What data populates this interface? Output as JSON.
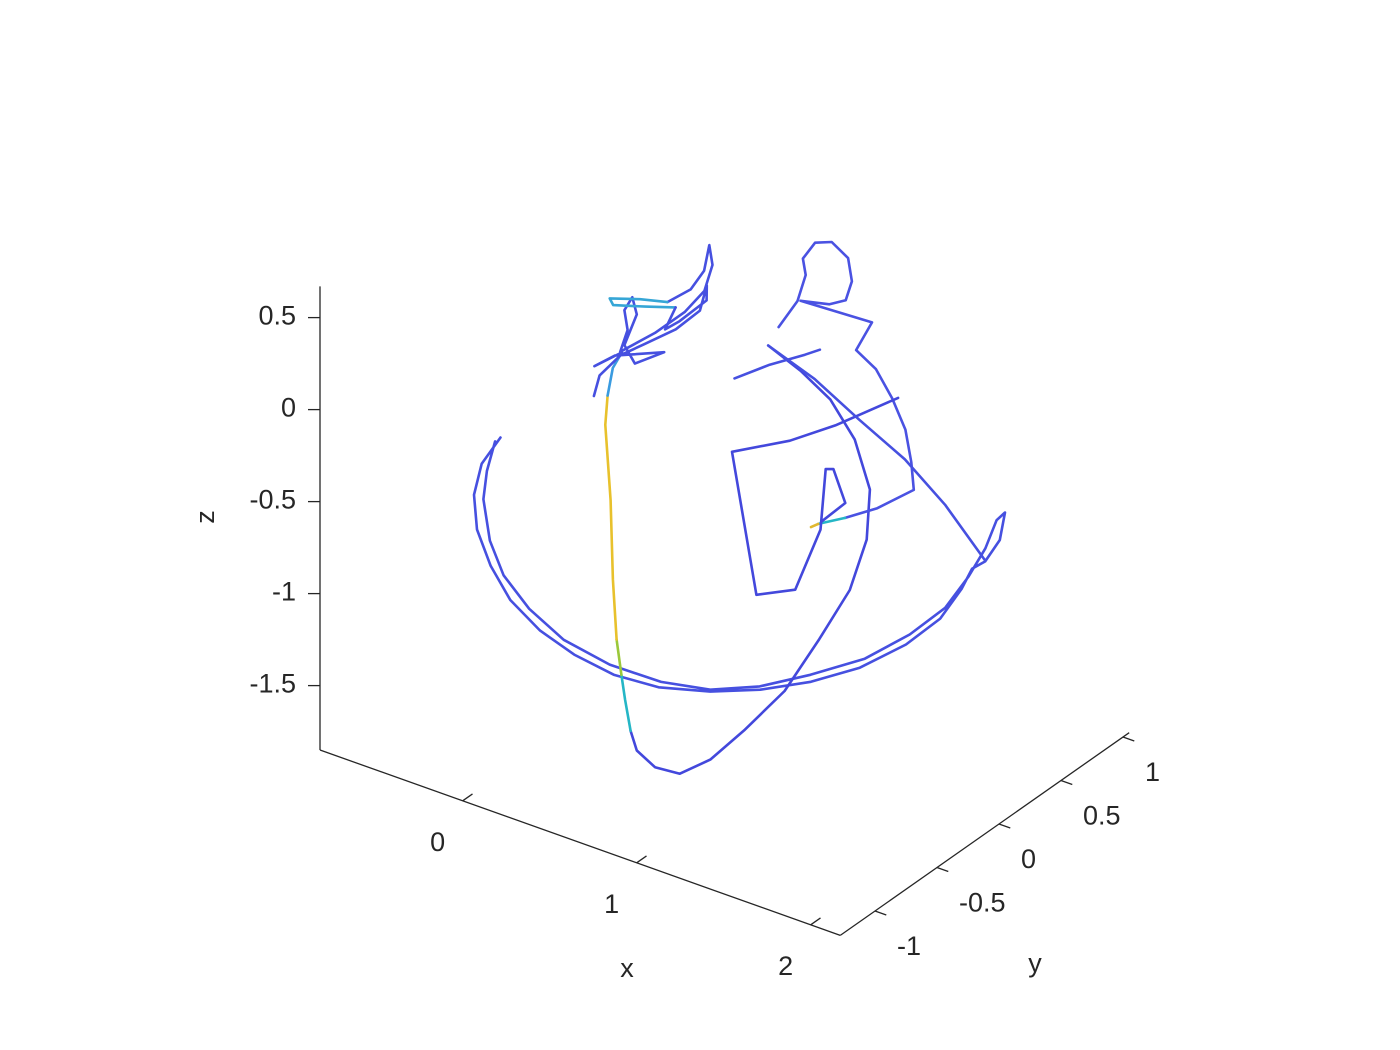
{
  "chart_data": {
    "type": "line3d",
    "xlabel": "x",
    "ylabel": "y",
    "zlabel": "z",
    "xlim": [
      -0.82,
      2.17
    ],
    "ylim": [
      -1.28,
      1.05
    ],
    "zlim": [
      -1.85,
      0.67
    ],
    "xticks": [
      0,
      1,
      2
    ],
    "yticks": [
      -1,
      -0.5,
      0,
      0.5,
      1
    ],
    "zticks": [
      -1.5,
      -1,
      -0.5,
      0,
      0.5
    ],
    "series": [
      {
        "color": "#4650e0",
        "x": [
          -0.21,
          -0.24,
          -0.22,
          -0.16,
          -0.06,
          0.06,
          0.21,
          0.37,
          0.54,
          0.72,
          0.91,
          1.09,
          1.26,
          1.42,
          1.55,
          1.64,
          1.67,
          1.68,
          1.72,
          1.74,
          1.72,
          1.7,
          1.7,
          1.68,
          1.64,
          1.55,
          1.42,
          1.25,
          1.08,
          0.91,
          0.72,
          0.51,
          0.31,
          0.14,
          0.0,
          -0.1,
          -0.18,
          -0.21,
          -0.22
        ],
        "y": [
          -0.68,
          -0.79,
          -0.88,
          -0.94,
          -0.97,
          -0.98,
          -0.95,
          -0.9,
          -0.82,
          -0.71,
          -0.56,
          -0.41,
          -0.24,
          -0.07,
          0.12,
          0.27,
          0.4,
          0.47,
          0.52,
          0.61,
          0.68,
          0.64,
          0.55,
          0.44,
          0.31,
          0.15,
          -0.03,
          -0.23,
          -0.4,
          -0.56,
          -0.69,
          -0.81,
          -0.9,
          -0.94,
          -0.95,
          -0.92,
          -0.86,
          -0.79,
          -0.71
        ],
        "z": [
          -0.23,
          -0.33,
          -0.45,
          -0.59,
          -0.74,
          -0.88,
          -1.01,
          -1.11,
          -1.2,
          -1.26,
          -1.29,
          -1.29,
          -1.27,
          -1.22,
          -1.14,
          -1.04,
          -0.93,
          -0.85,
          -0.82,
          -0.74,
          -0.63,
          -0.66,
          -0.77,
          -0.88,
          -1.0,
          -1.1,
          -1.19,
          -1.24,
          -1.28,
          -1.28,
          -1.24,
          -1.16,
          -1.05,
          -0.92,
          -0.78,
          -0.64,
          -0.47,
          -0.36,
          -0.24
        ]
      },
      {
        "color": "#4348dc",
        "x": [
          0.63,
          0.78,
          0.93,
          1.07,
          1.2,
          1.26,
          1.27,
          1.23,
          1.18,
          1.09,
          1.01,
          0.92,
          0.82,
          0.73,
          0.68
        ],
        "y": [
          0.3,
          0.35,
          0.38,
          0.38,
          0.32,
          0.21,
          0.06,
          -0.13,
          -0.34,
          -0.54,
          -0.7,
          -0.82,
          -0.88,
          -0.9,
          -0.88
        ],
        "z": [
          0.09,
          -0.02,
          -0.14,
          -0.31,
          -0.51,
          -0.71,
          -0.91,
          -1.1,
          -1.3,
          -1.45,
          -1.56,
          -1.61,
          -1.58,
          -1.51,
          -1.43
        ]
      },
      {
        "color": "#25b6c6",
        "x": [
          0.68,
          0.62,
          0.57
        ],
        "y": [
          -0.88,
          -0.84,
          -0.8
        ],
        "z": [
          -1.43,
          -1.3,
          -1.2
        ]
      },
      {
        "color": "#9bc83a",
        "x": [
          0.57,
          0.5
        ],
        "y": [
          -0.8,
          -0.74
        ],
        "z": [
          -1.2,
          -1.06
        ]
      },
      {
        "color": "#e8c12c",
        "x": [
          0.5,
          0.4,
          0.28,
          0.15,
          0.12
        ],
        "y": [
          -0.74,
          -0.63,
          -0.48,
          -0.34,
          -0.28
        ],
        "z": [
          -1.06,
          -0.82,
          -0.5,
          -0.2,
          -0.08
        ]
      },
      {
        "color": "#3a9be0",
        "x": [
          0.12,
          0.1,
          0.11
        ],
        "y": [
          -0.28,
          -0.21,
          -0.15
        ],
        "z": [
          -0.08,
          0.03,
          0.09
        ]
      },
      {
        "color": "#4650e0",
        "x": [
          0.11,
          0.03,
          0.09,
          0.26,
          0.17,
          0.11,
          0.11,
          0.07,
          0.06,
          0.1,
          0.1,
          0.2,
          0.28,
          0.32,
          0.31,
          0.27,
          0.29,
          0.27,
          0.2
        ],
        "y": [
          -0.15,
          -0.26,
          -0.18,
          -0.02,
          -0.13,
          -0.13,
          -0.03,
          -0.01,
          -0.06,
          -0.09,
          -0.15,
          -0.01,
          0.12,
          0.22,
          0.3,
          0.33,
          0.26,
          0.18,
          0.09
        ],
        "z": [
          0.09,
          0.04,
          0.08,
          0.08,
          0.04,
          0.12,
          0.24,
          0.31,
          0.26,
          0.18,
          0.09,
          0.16,
          0.24,
          0.32,
          0.42,
          0.5,
          0.4,
          0.33,
          0.28
        ]
      },
      {
        "color": "#36a6d6",
        "x": [
          0.2,
          0.1,
          -0.01,
          0.01,
          0.13,
          0.24
        ],
        "y": [
          0.09,
          0.01,
          -0.08,
          -0.08,
          0.01,
          0.1
        ],
        "z": [
          0.28,
          0.3,
          0.31,
          0.28,
          0.27,
          0.26
        ]
      },
      {
        "color": "#4650e0",
        "x": [
          0.24,
          0.23,
          0.27,
          0.34,
          0.32,
          0.33,
          0.27,
          0.18,
          0.11,
          0.06,
          0.07
        ],
        "y": [
          0.1,
          0.03,
          0.09,
          0.21,
          0.24,
          0.17,
          0.06,
          -0.07,
          -0.16,
          -0.26,
          -0.32
        ],
        "z": [
          0.26,
          0.17,
          0.2,
          0.28,
          0.34,
          0.24,
          0.17,
          0.12,
          0.08,
          0.0,
          -0.08
        ]
      },
      {
        "color": "#4650e0",
        "x": [
          0.55,
          0.66,
          0.77,
          0.82
        ],
        "y": [
          0.14,
          0.27,
          0.4,
          0.45
        ],
        "z": [
          -0.04,
          0.01,
          0.04,
          0.06
        ]
      },
      {
        "color": "#4a52e2",
        "x": [
          0.64,
          0.67,
          0.66,
          0.63,
          0.65,
          0.71,
          0.79,
          0.84,
          0.84,
          0.79,
          0.68,
          0.97,
          0.95,
          1.05,
          1.15,
          1.24,
          1.31,
          1.36,
          1.25,
          1.15
        ],
        "y": [
          0.37,
          0.48,
          0.56,
          0.58,
          0.65,
          0.7,
          0.72,
          0.68,
          0.63,
          0.57,
          0.49,
          0.66,
          0.56,
          0.58,
          0.57,
          0.55,
          0.5,
          0.45,
          0.31,
          0.19
        ],
        "z": [
          0.16,
          0.26,
          0.36,
          0.43,
          0.49,
          0.49,
          0.42,
          0.33,
          0.25,
          0.24,
          0.26,
          0.16,
          0.05,
          -0.03,
          -0.15,
          -0.28,
          -0.41,
          -0.52,
          -0.59,
          -0.62
        ]
      },
      {
        "color": "#25b6c6",
        "x": [
          1.15,
          1.06
        ],
        "y": [
          0.19,
          0.1
        ],
        "z": [
          -0.62,
          -0.64
        ]
      },
      {
        "color": "#e0b830",
        "x": [
          1.06,
          1.04
        ],
        "y": [
          0.1,
          0.07
        ],
        "z": [
          -0.64,
          -0.65
        ]
      },
      {
        "color": "#4348dc",
        "x": [
          1.17,
          1.09,
          0.98,
          0.84,
          0.65,
          0.94,
          1.07,
          1.08,
          1.01,
          1.04,
          1.13,
          1.07
        ],
        "y": [
          0.59,
          0.48,
          0.35,
          0.18,
          -0.02,
          -0.23,
          -0.1,
          0.09,
          0.23,
          0.25,
          0.22,
          0.11
        ],
        "z": [
          -0.15,
          -0.19,
          -0.25,
          -0.3,
          -0.33,
          -0.91,
          -0.9,
          -0.66,
          -0.42,
          -0.42,
          -0.56,
          -0.63
        ]
      },
      {
        "color": "#4650e0",
        "x": [
          0.63,
          0.84,
          1.06,
          1.28,
          1.49,
          1.71
        ],
        "y": [
          0.3,
          0.38,
          0.43,
          0.49,
          0.52,
          0.53
        ],
        "z": [
          0.09,
          -0.06,
          -0.23,
          -0.4,
          -0.59,
          -0.82
        ]
      }
    ]
  }
}
